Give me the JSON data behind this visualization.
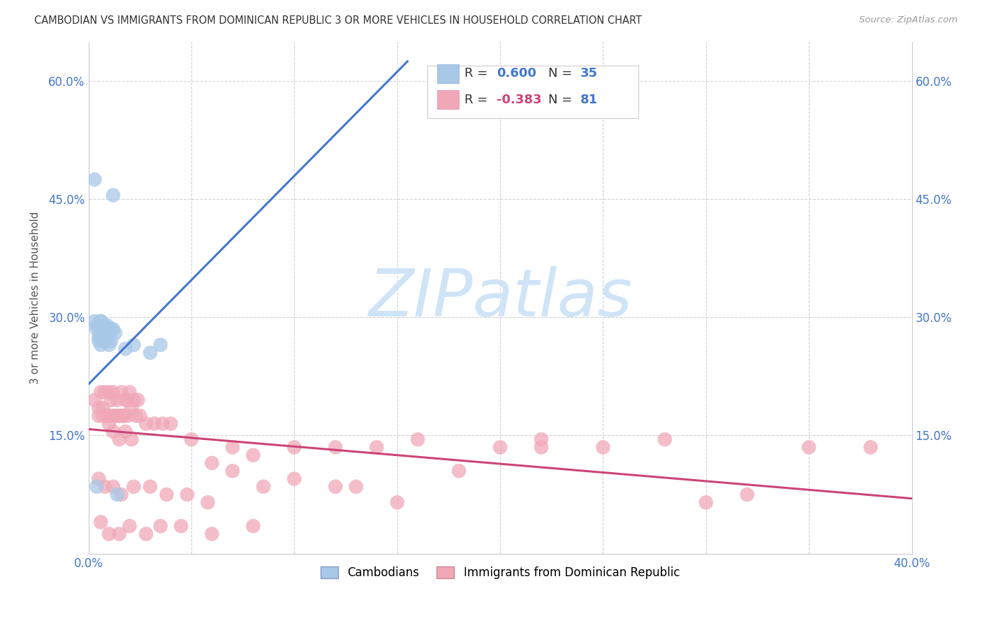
{
  "title": "CAMBODIAN VS IMMIGRANTS FROM DOMINICAN REPUBLIC 3 OR MORE VEHICLES IN HOUSEHOLD CORRELATION CHART",
  "source": "Source: ZipAtlas.com",
  "ylabel": "3 or more Vehicles in Household",
  "xlim": [
    0.0,
    0.4
  ],
  "ylim": [
    0.0,
    0.65
  ],
  "xticks": [
    0.0,
    0.05,
    0.1,
    0.15,
    0.2,
    0.25,
    0.3,
    0.35,
    0.4
  ],
  "yticks": [
    0.0,
    0.15,
    0.3,
    0.45,
    0.6
  ],
  "grid_color": "#cccccc",
  "background_color": "#ffffff",
  "blue_color": "#a8c8e8",
  "pink_color": "#f0a8b8",
  "blue_line_color": "#4477cc",
  "pink_line_color": "#cc4477",
  "watermark_text": "ZIPatlas",
  "watermark_color": "#d0e4f7",
  "legend_R_blue": "0.600",
  "legend_N_blue": "35",
  "legend_R_pink": "-0.383",
  "legend_N_pink": "81",
  "legend_label_blue": "Cambodians",
  "legend_label_pink": "Immigrants from Dominican Republic",
  "blue_scatter_x": [
    0.003,
    0.012,
    0.003,
    0.004,
    0.006,
    0.007,
    0.008,
    0.009,
    0.01,
    0.011,
    0.004,
    0.006,
    0.007,
    0.008,
    0.009,
    0.01,
    0.012,
    0.013,
    0.005,
    0.007,
    0.005,
    0.006,
    0.007,
    0.008,
    0.009,
    0.01,
    0.011,
    0.006,
    0.03,
    0.035,
    0.006,
    0.004,
    0.014,
    0.018,
    0.022
  ],
  "blue_scatter_y": [
    0.475,
    0.455,
    0.295,
    0.285,
    0.295,
    0.29,
    0.285,
    0.29,
    0.285,
    0.285,
    0.29,
    0.295,
    0.29,
    0.28,
    0.285,
    0.285,
    0.285,
    0.28,
    0.27,
    0.275,
    0.275,
    0.28,
    0.275,
    0.27,
    0.275,
    0.265,
    0.27,
    0.265,
    0.255,
    0.265,
    0.275,
    0.085,
    0.075,
    0.26,
    0.265
  ],
  "pink_scatter_x": [
    0.003,
    0.005,
    0.007,
    0.009,
    0.011,
    0.013,
    0.015,
    0.017,
    0.019,
    0.021,
    0.006,
    0.008,
    0.01,
    0.012,
    0.014,
    0.016,
    0.018,
    0.02,
    0.022,
    0.024,
    0.005,
    0.007,
    0.009,
    0.011,
    0.013,
    0.015,
    0.017,
    0.019,
    0.023,
    0.025,
    0.01,
    0.012,
    0.015,
    0.018,
    0.021,
    0.028,
    0.032,
    0.036,
    0.04,
    0.05,
    0.06,
    0.07,
    0.08,
    0.1,
    0.12,
    0.14,
    0.16,
    0.2,
    0.22,
    0.25,
    0.005,
    0.008,
    0.012,
    0.016,
    0.022,
    0.03,
    0.038,
    0.048,
    0.058,
    0.07,
    0.085,
    0.1,
    0.12,
    0.15,
    0.18,
    0.22,
    0.28,
    0.3,
    0.32,
    0.35,
    0.006,
    0.01,
    0.015,
    0.02,
    0.028,
    0.035,
    0.045,
    0.06,
    0.08,
    0.13,
    0.38
  ],
  "pink_scatter_y": [
    0.195,
    0.175,
    0.185,
    0.175,
    0.195,
    0.175,
    0.175,
    0.175,
    0.195,
    0.185,
    0.205,
    0.205,
    0.205,
    0.205,
    0.195,
    0.205,
    0.195,
    0.205,
    0.195,
    0.195,
    0.185,
    0.175,
    0.175,
    0.175,
    0.175,
    0.175,
    0.175,
    0.175,
    0.175,
    0.175,
    0.165,
    0.155,
    0.145,
    0.155,
    0.145,
    0.165,
    0.165,
    0.165,
    0.165,
    0.145,
    0.115,
    0.135,
    0.125,
    0.135,
    0.135,
    0.135,
    0.145,
    0.135,
    0.145,
    0.135,
    0.095,
    0.085,
    0.085,
    0.075,
    0.085,
    0.085,
    0.075,
    0.075,
    0.065,
    0.105,
    0.085,
    0.095,
    0.085,
    0.065,
    0.105,
    0.135,
    0.145,
    0.065,
    0.075,
    0.135,
    0.04,
    0.025,
    0.025,
    0.035,
    0.025,
    0.035,
    0.035,
    0.025,
    0.035,
    0.085,
    0.135
  ],
  "blue_line_x": [
    0.0,
    0.155
  ],
  "blue_line_y": [
    0.215,
    0.625
  ],
  "pink_line_x": [
    0.0,
    0.4
  ],
  "pink_line_y": [
    0.158,
    0.07
  ]
}
